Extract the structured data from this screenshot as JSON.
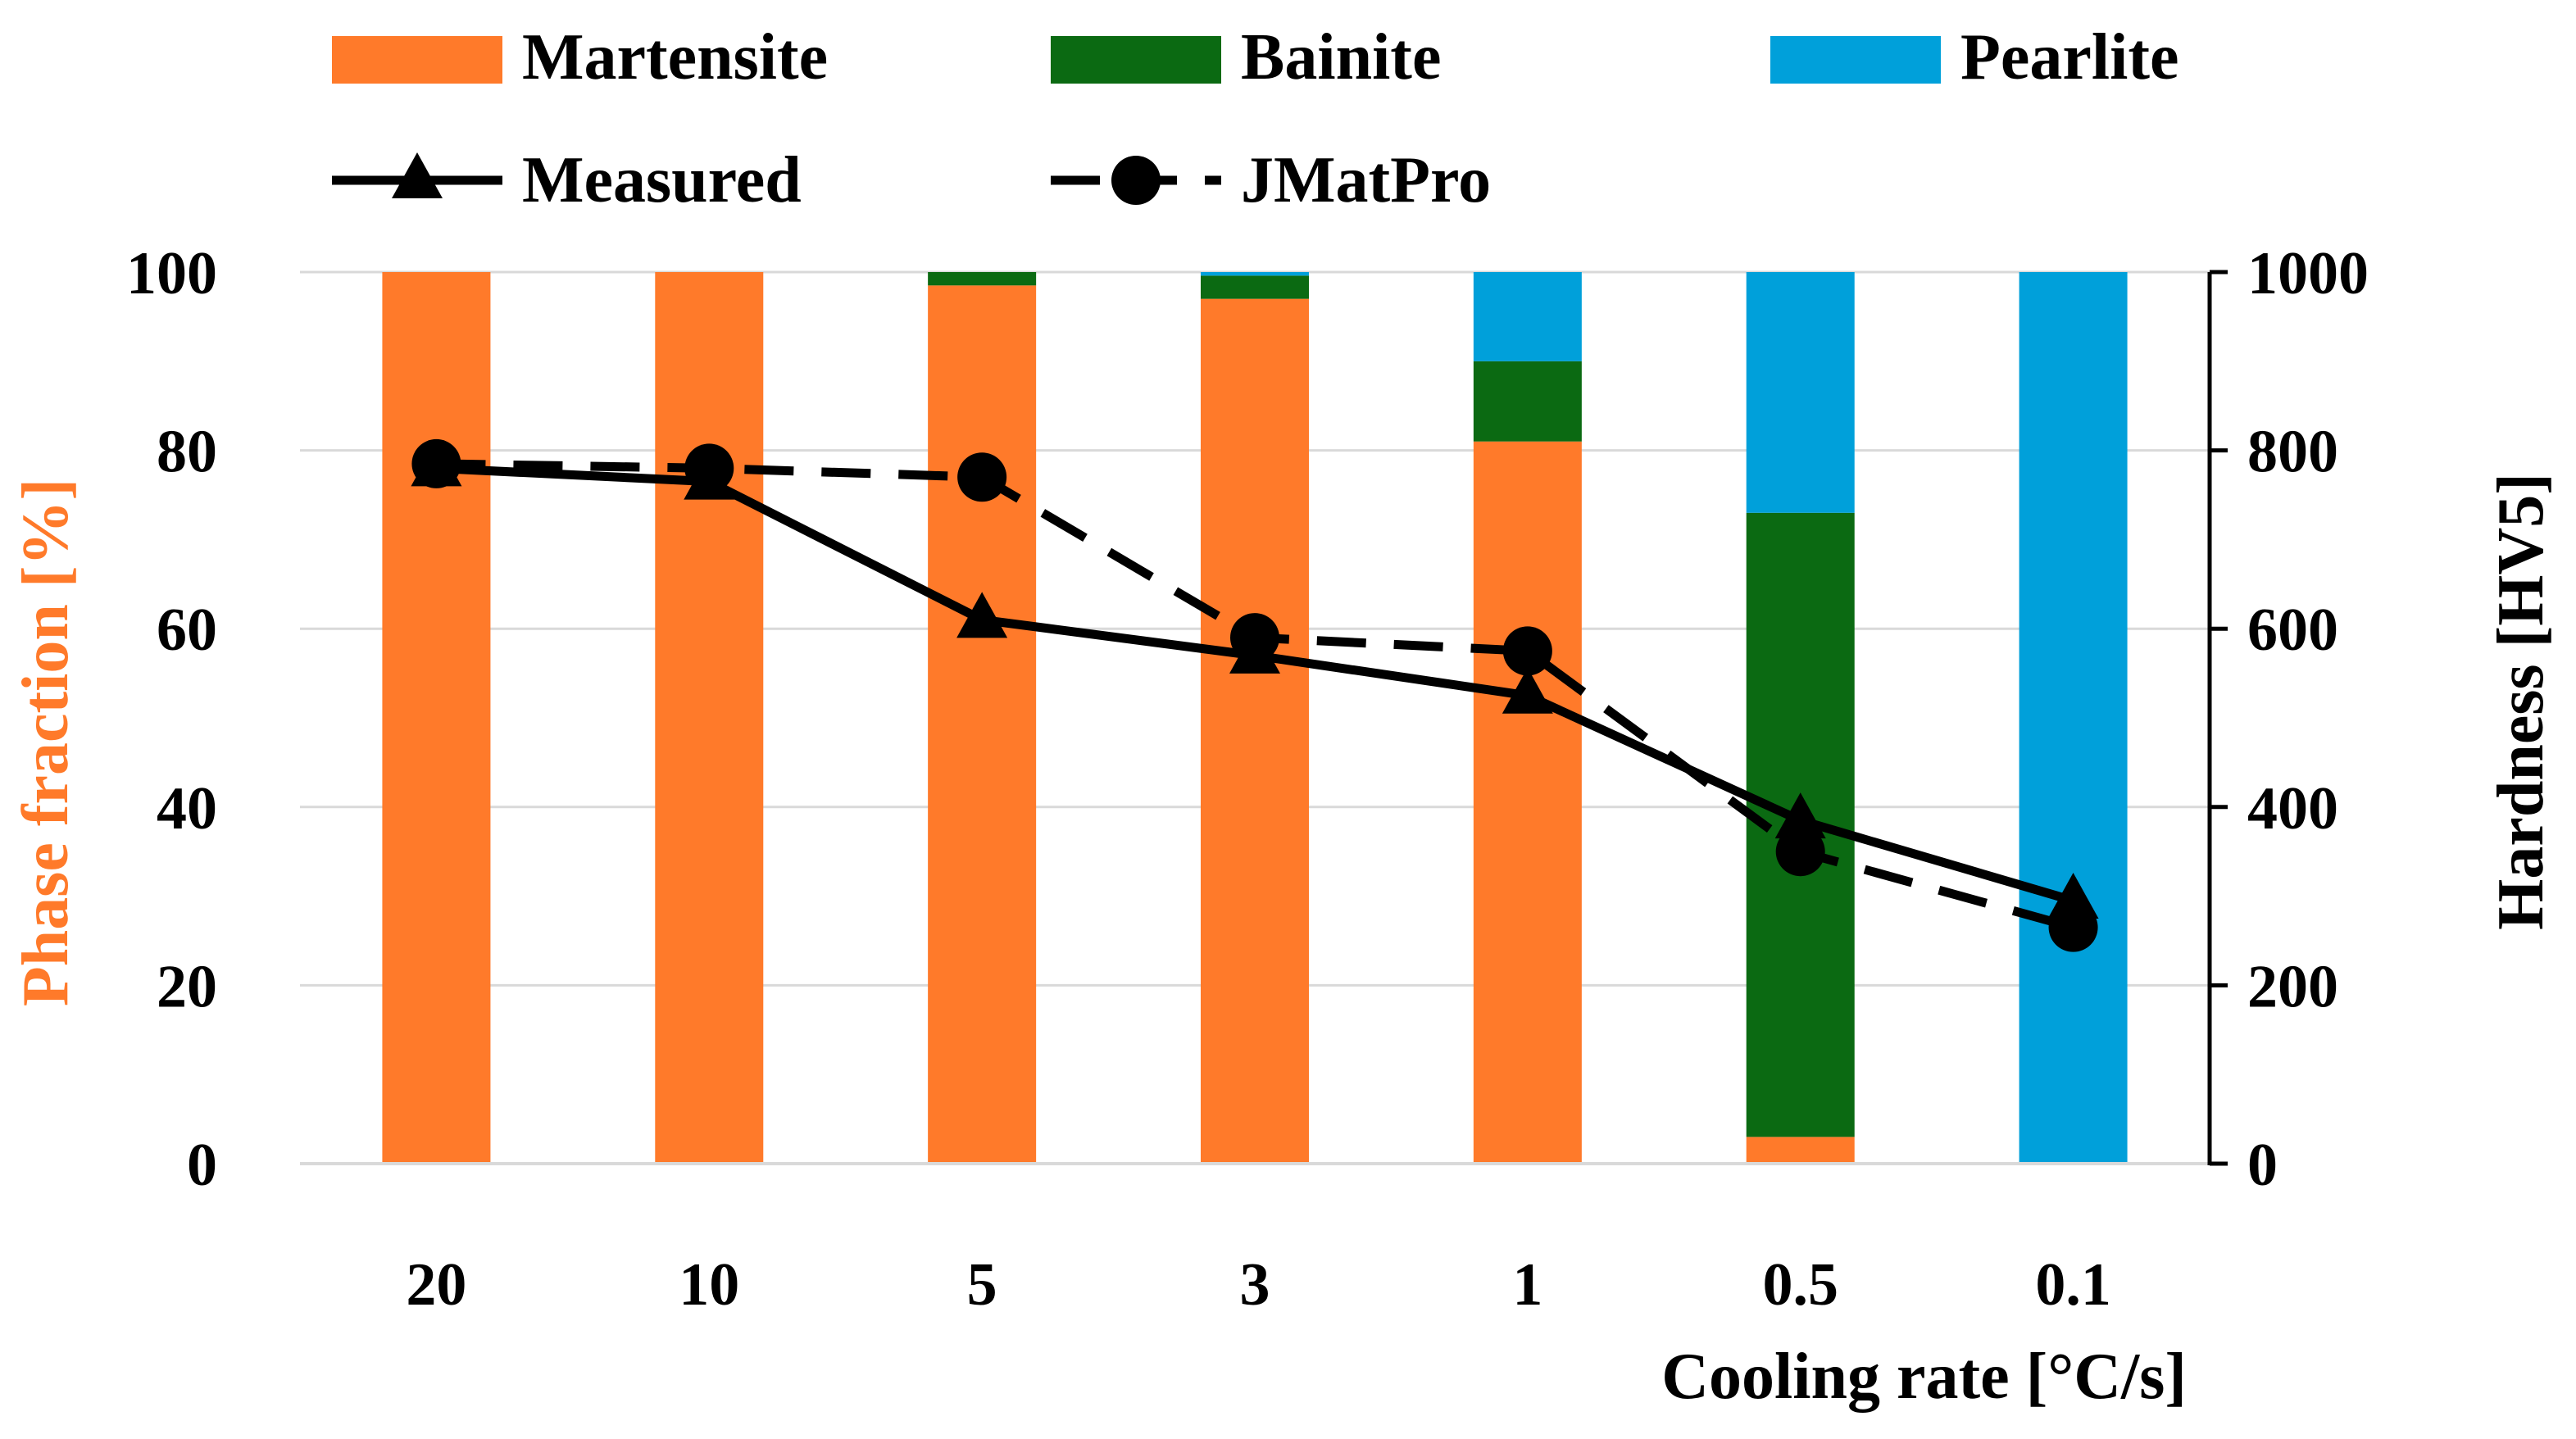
{
  "chart_data": {
    "type": "bar",
    "stacked": true,
    "categories": [
      "20",
      "10",
      "5",
      "3",
      "1",
      "0.5",
      "0.1"
    ],
    "series": [
      {
        "name": "Martensite",
        "kind": "bar",
        "axis": "left",
        "color": "#FF7A2A",
        "values": [
          100,
          100,
          98.5,
          97,
          81,
          3,
          0
        ]
      },
      {
        "name": "Bainite",
        "kind": "bar",
        "axis": "left",
        "color": "#0B6A12",
        "values": [
          0,
          0,
          1.5,
          2.6,
          9,
          70,
          0
        ]
      },
      {
        "name": "Pearlite",
        "kind": "bar",
        "axis": "left",
        "color": "#00A0DA",
        "values": [
          0,
          0,
          0,
          0.4,
          10,
          27,
          100
        ]
      },
      {
        "name": "Measured",
        "kind": "line",
        "axis": "right",
        "color": "#000000",
        "line_style": "solid",
        "marker": "triangle",
        "values": [
          780,
          765,
          610,
          570,
          525,
          385,
          295
        ]
      },
      {
        "name": "JMatPro",
        "kind": "line",
        "axis": "right",
        "color": "#000000",
        "line_style": "dashed",
        "marker": "circle",
        "values": [
          785,
          780,
          770,
          590,
          575,
          350,
          265
        ]
      }
    ],
    "xlabel": "Cooling rate [°C/s]",
    "ylabel": "Phase fraction [%]",
    "ylabel_color": "#FF7A2A",
    "y2label": "Hardness [HV5]",
    "ylim": [
      0,
      100
    ],
    "y2lim": [
      0,
      1000
    ],
    "yticks": [
      "0",
      "20",
      "40",
      "60",
      "80",
      "100"
    ],
    "y2ticks": [
      "0",
      "200",
      "400",
      "600",
      "800",
      "1000"
    ],
    "grid": true,
    "legend_position": "top"
  }
}
